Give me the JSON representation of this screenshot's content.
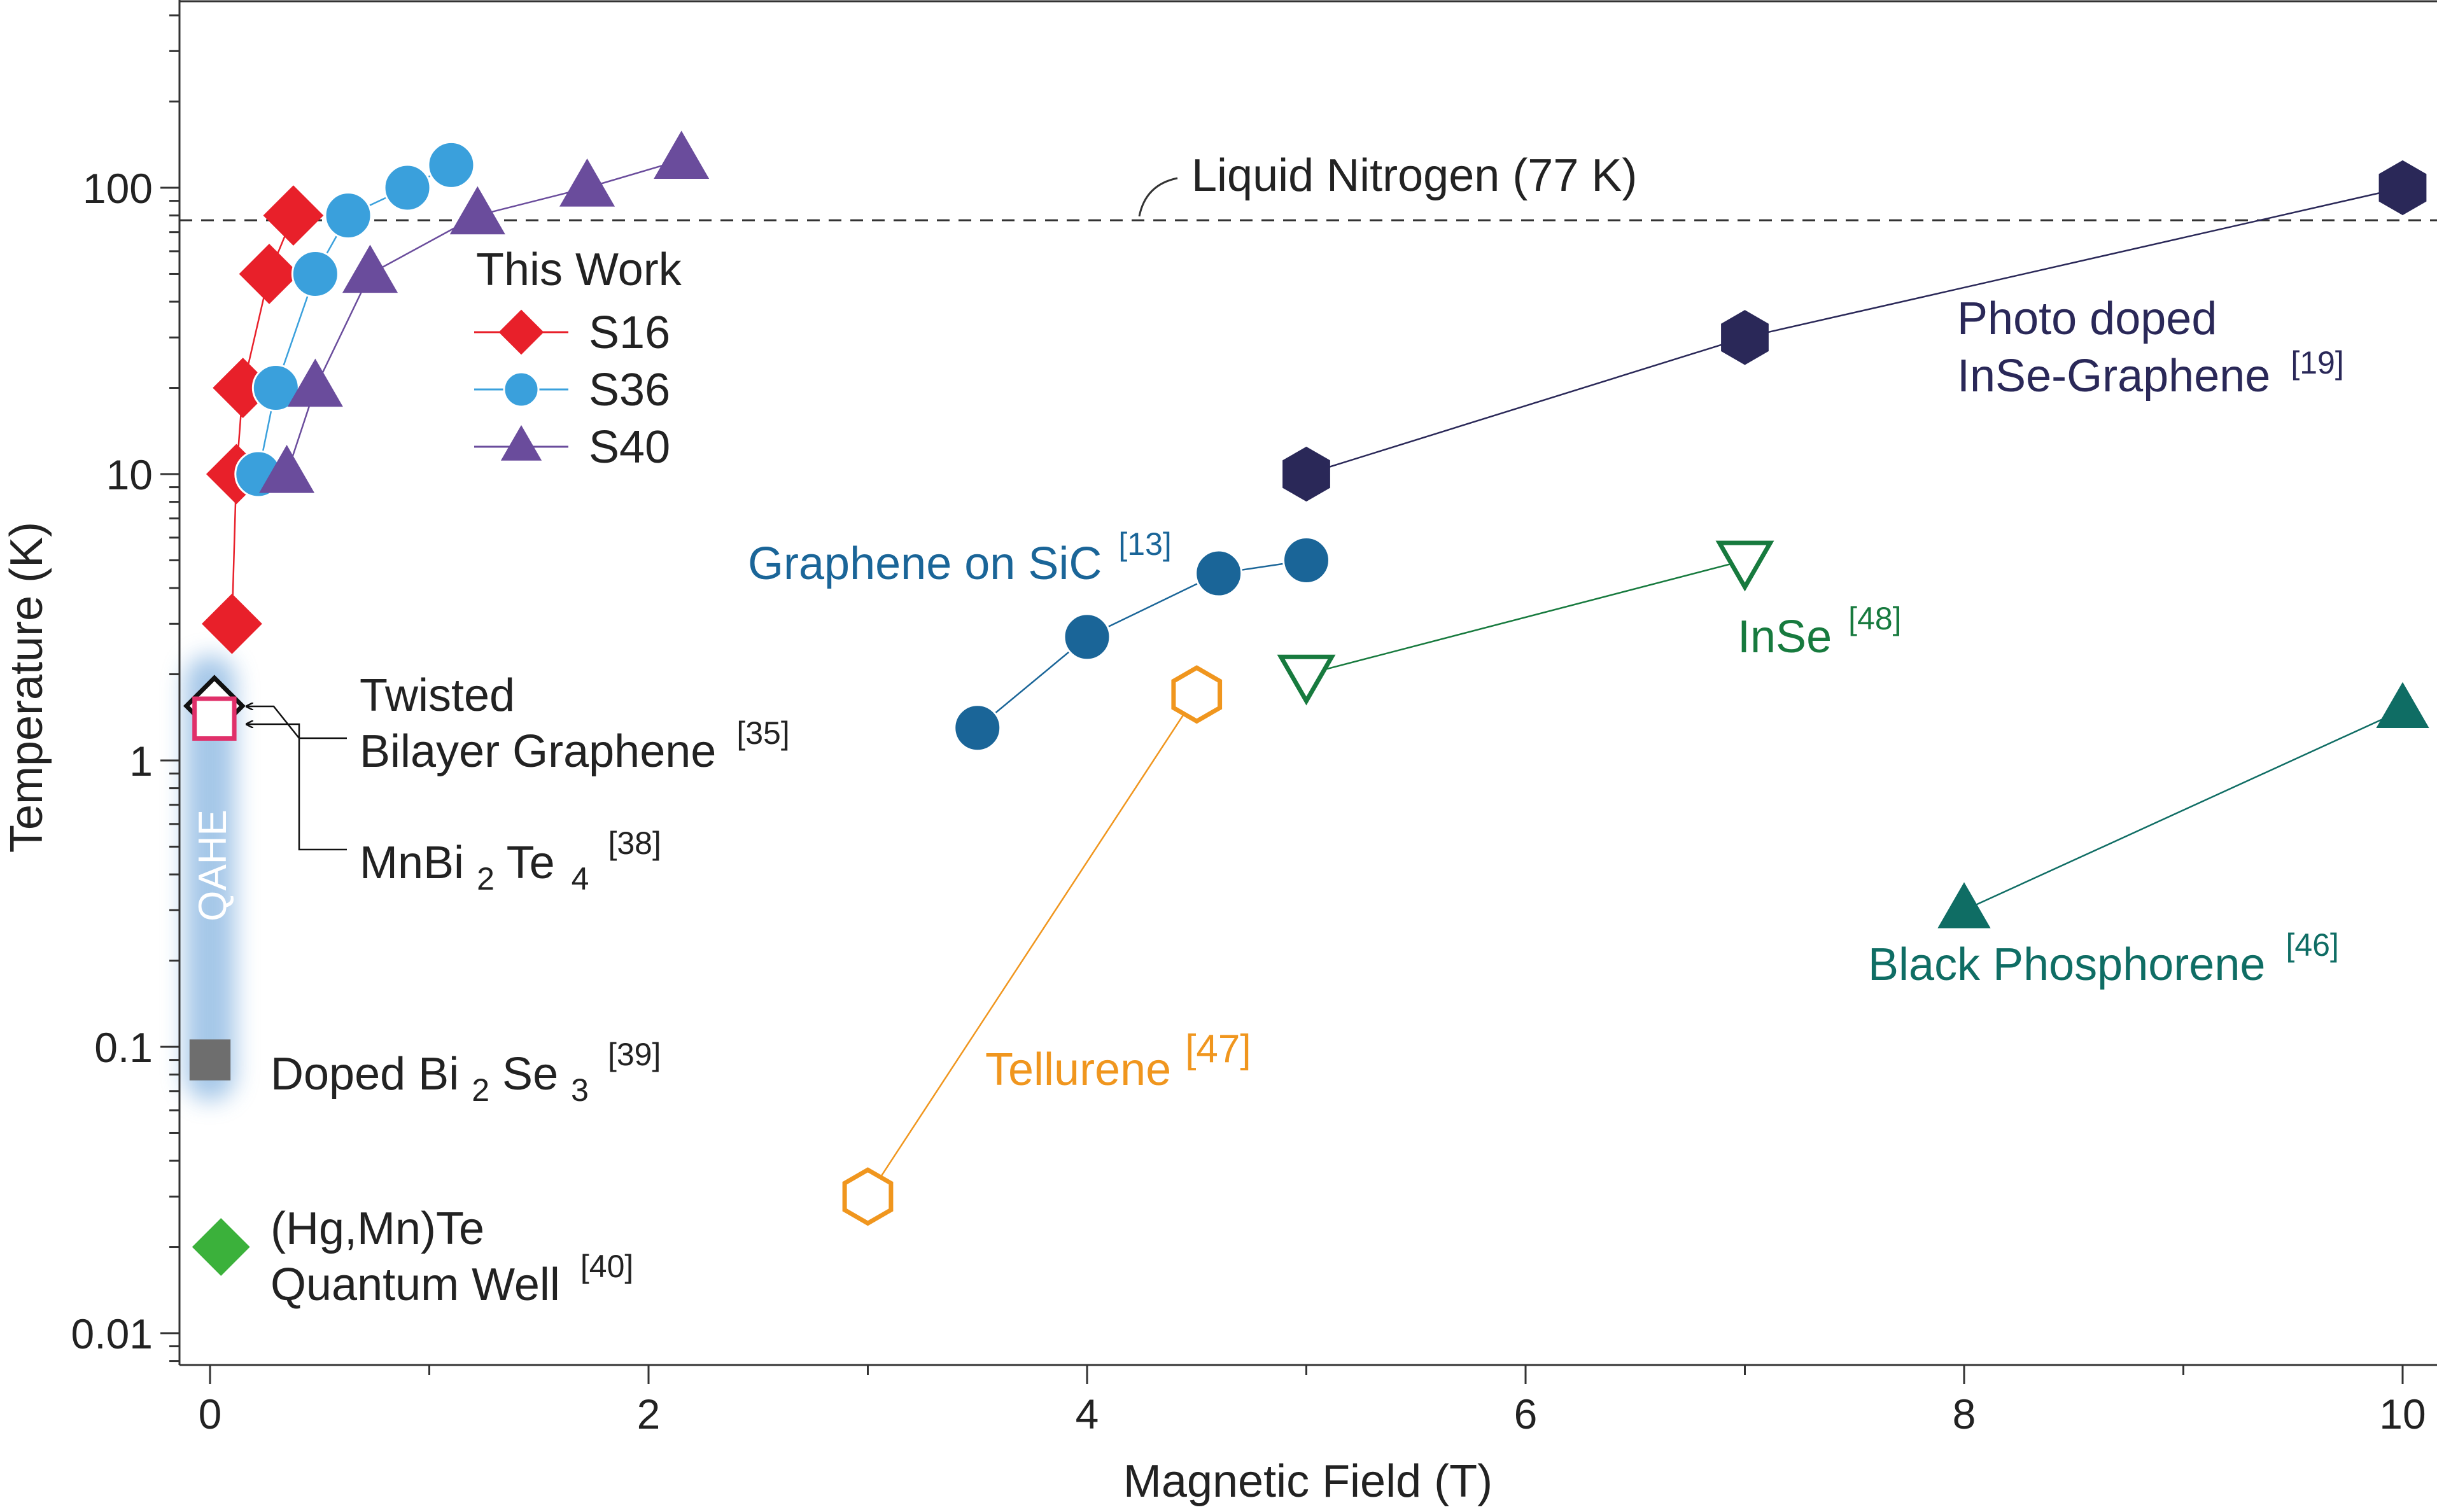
{
  "chart_data": {
    "type": "scatter",
    "xlabel": "Magnetic Field (T)",
    "ylabel": "Temperature (K)",
    "xlim": [
      -0.25,
      10.2
    ],
    "ylim": [
      0.007,
      400
    ],
    "yscale": "log",
    "xticks": [
      0,
      2,
      4,
      6,
      8,
      10
    ],
    "xtick_labels": [
      "0",
      "2",
      "4",
      "6",
      "8",
      "10"
    ],
    "yticks": [
      0.01,
      0.1,
      1,
      10,
      100
    ],
    "ytick_labels": [
      "0.01",
      "0.1",
      "1",
      "10",
      "100"
    ],
    "reference_line": {
      "y": 77,
      "label": "Liquid Nitrogen (77 K)"
    },
    "legend": {
      "title": "This Work",
      "placement": "upper-left"
    },
    "this_work": [
      {
        "name": "S16",
        "color": "#e8202a",
        "marker": "diamond",
        "x": [
          0.1,
          0.12,
          0.15,
          0.27,
          0.38
        ],
        "y": [
          3,
          10,
          20,
          50,
          80
        ]
      },
      {
        "name": "S36",
        "color": "#3aa0dc",
        "marker": "circle",
        "x": [
          0.22,
          0.3,
          0.48,
          0.63,
          0.9,
          1.1
        ],
        "y": [
          10,
          20,
          50,
          80,
          100,
          120
        ]
      },
      {
        "name": "S40",
        "color": "#6a4c9c",
        "marker": "triangle-up",
        "x": [
          0.35,
          0.48,
          0.73,
          1.22,
          1.72,
          2.15
        ],
        "y": [
          10,
          20,
          50,
          80,
          100,
          125
        ]
      }
    ],
    "literature": [
      {
        "id": "photo",
        "name": "Photo doped InSe-Graphene",
        "label_lines": [
          "Photo doped",
          "InSe-Graphene"
        ],
        "ref": "[19]",
        "color": "#2a2858",
        "marker": "hexagon",
        "filled": true,
        "x": [
          5,
          7,
          10
        ],
        "y": [
          10,
          30,
          100
        ]
      },
      {
        "id": "sic",
        "name": "Graphene on SiC",
        "label_lines": [
          "Graphene on SiC"
        ],
        "ref": "[13]",
        "color": "#1a6598",
        "marker": "circle",
        "filled": true,
        "x": [
          3.5,
          4.0,
          4.6,
          5.0
        ],
        "y": [
          1.3,
          2.7,
          4.5,
          5.0
        ]
      },
      {
        "id": "inse",
        "name": "InSe",
        "label_lines": [
          "InSe"
        ],
        "ref": "[48]",
        "color": "#177a3e",
        "marker": "triangle-down",
        "filled": false,
        "x": [
          5,
          7
        ],
        "y": [
          2,
          5
        ]
      },
      {
        "id": "tell",
        "name": "Tellurene",
        "label_lines": [
          "Tellurene"
        ],
        "ref": "[47]",
        "color": "#f0961e",
        "marker": "hexagon",
        "filled": false,
        "x": [
          3,
          4.5
        ],
        "y": [
          0.03,
          1.7
        ]
      },
      {
        "id": "bp",
        "name": "Black Phosphorene",
        "label_lines": [
          "Black Phosphorene"
        ],
        "ref": "[46]",
        "color": "#0f6d64",
        "marker": "triangle-up",
        "filled": true,
        "x": [
          8,
          10
        ],
        "y": [
          0.3,
          1.5
        ]
      },
      {
        "id": "tbg",
        "name": "Twisted Bilayer Graphene",
        "label_lines": [
          "Twisted",
          "Bilayer Graphene"
        ],
        "ref": "[35]",
        "color": "#111111",
        "marker": "diamond",
        "filled": false,
        "x": [
          0.02
        ],
        "y": [
          1.55
        ]
      },
      {
        "id": "mbt",
        "name": "MnBi2Te4",
        "label_lines": [
          "MnBi",
          "2",
          "Te",
          "4"
        ],
        "ref": "[38]",
        "color": "#e0306a",
        "marker": "square",
        "filled": false,
        "x": [
          0.02
        ],
        "y": [
          1.4
        ]
      },
      {
        "id": "dbs",
        "name": "Doped Bi2Se3",
        "label_lines": [
          "Doped Bi",
          "2",
          "Se",
          "3"
        ],
        "ref": "[39]",
        "color": "#6e6e6e",
        "marker": "square",
        "filled": true,
        "x": [
          0.0
        ],
        "y": [
          0.09
        ]
      },
      {
        "id": "hgmn",
        "name": "(Hg,Mn)Te Quantum Well",
        "label_lines": [
          "(Hg,Mn)Te",
          "Quantum Well"
        ],
        "ref": "[40]",
        "color": "#3bb13b",
        "marker": "diamond",
        "filled": true,
        "x": [
          0.05
        ],
        "y": [
          0.02
        ]
      }
    ],
    "qahe_band": {
      "label": "QAHE",
      "color": "#5b9ad6",
      "y_range": [
        0.075,
        2.2
      ],
      "x": 0.0
    }
  }
}
